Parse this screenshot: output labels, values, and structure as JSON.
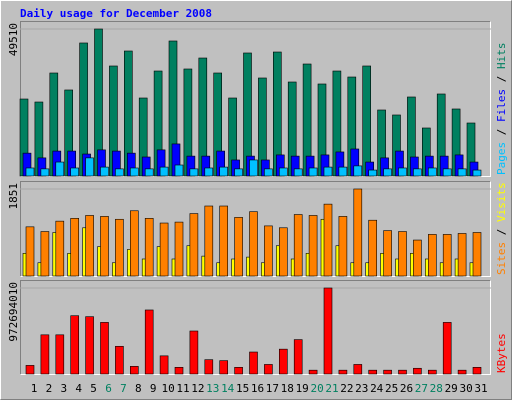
{
  "chart_data": [
    {
      "type": "bar",
      "title": "Daily usage for December 2008",
      "legend_separator": " / ",
      "ylim": [
        0,
        49510
      ],
      "yticks": [
        49510
      ],
      "series": [
        {
          "name": "Pages",
          "color": "#00C0FF",
          "values": [
            2700,
            2400,
            4700,
            2700,
            6100,
            3000,
            2400,
            2700,
            2400,
            3000,
            3700,
            2400,
            2700,
            3000,
            2400,
            5400,
            2400,
            2700,
            2400,
            2700,
            3000,
            3000,
            3400,
            2000,
            2400,
            2700,
            2400,
            2700,
            2400,
            2400,
            2000
          ]
        },
        {
          "name": "Files",
          "color": "#0000FF",
          "values": [
            7700,
            6100,
            8400,
            8400,
            7400,
            8800,
            8400,
            7700,
            6400,
            8800,
            10800,
            6700,
            6700,
            8400,
            5400,
            6700,
            5400,
            7100,
            6700,
            6700,
            7100,
            8100,
            9100,
            4700,
            6100,
            8400,
            6400,
            6700,
            6700,
            7100,
            4700
          ]
        },
        {
          "name": "Hits",
          "color": "#008060",
          "values": [
            25930,
            24920,
            34690,
            28970,
            44800,
            49510,
            37050,
            42100,
            26270,
            35360,
            45470,
            36040,
            39740,
            34690,
            26270,
            41430,
            33010,
            41760,
            31660,
            37720,
            30990,
            35360,
            33340,
            37050,
            22230,
            20550,
            26610,
            16170,
            27620,
            22570,
            17850
          ]
        }
      ]
    },
    {
      "type": "bar",
      "legend_separator": " / ",
      "ylim": [
        0,
        1851
      ],
      "yticks": [
        1851
      ],
      "series": [
        {
          "name": "Sites",
          "color": "#FF8000",
          "values": [
            1046,
            946,
            1167,
            1227,
            1288,
            1268,
            1207,
            1388,
            1227,
            1127,
            1147,
            1328,
            1489,
            1489,
            1247,
            1368,
            1066,
            1026,
            1308,
            1288,
            1529,
            1268,
            1851,
            1187,
            966,
            946,
            765,
            885,
            885,
            905,
            926
          ]
        },
        {
          "name": "Visits",
          "color": "#FFFF00",
          "values": [
            483,
            282,
            925,
            483,
            1026,
            624,
            282,
            563,
            362,
            624,
            362,
            644,
            423,
            282,
            362,
            402,
            282,
            644,
            362,
            483,
            1207,
            644,
            282,
            282,
            483,
            362,
            483,
            362,
            282,
            362,
            282
          ]
        }
      ]
    },
    {
      "type": "bar",
      "ylim": [
        0,
        972694010
      ],
      "yticks": [
        972694010
      ],
      "categories": [
        "1",
        "2",
        "3",
        "4",
        "5",
        "6",
        "7",
        "8",
        "9",
        "10",
        "11",
        "12",
        "13",
        "14",
        "15",
        "16",
        "17",
        "18",
        "19",
        "20",
        "21",
        "22",
        "23",
        "24",
        "25",
        "26",
        "27",
        "28",
        "29",
        "30",
        "31"
      ],
      "category_colors": [
        "#000000",
        "#000000",
        "#000000",
        "#000000",
        "#000000",
        "#008060",
        "#008060",
        "#000000",
        "#000000",
        "#000000",
        "#000000",
        "#000000",
        "#008060",
        "#008060",
        "#000000",
        "#000000",
        "#000000",
        "#000000",
        "#000000",
        "#008060",
        "#008060",
        "#000000",
        "#000000",
        "#000000",
        "#000000",
        "#000000",
        "#008060",
        "#008060",
        "#000000",
        "#000000",
        "#000000"
      ],
      "series": [
        {
          "name": "KBytes",
          "color": "#FF0000",
          "values": [
            97300000,
            443100000,
            443100000,
            659300000,
            648500000,
            583600000,
            313400000,
            86500000,
            724100000,
            205300000,
            75700000,
            486300000,
            162100000,
            151300000,
            75700000,
            248600000,
            108100000,
            281000000,
            389100000,
            43200000,
            972694010,
            43200000,
            108100000,
            43200000,
            43200000,
            43200000,
            64800000,
            43200000,
            583600000,
            43200000,
            75700000
          ]
        }
      ]
    }
  ]
}
